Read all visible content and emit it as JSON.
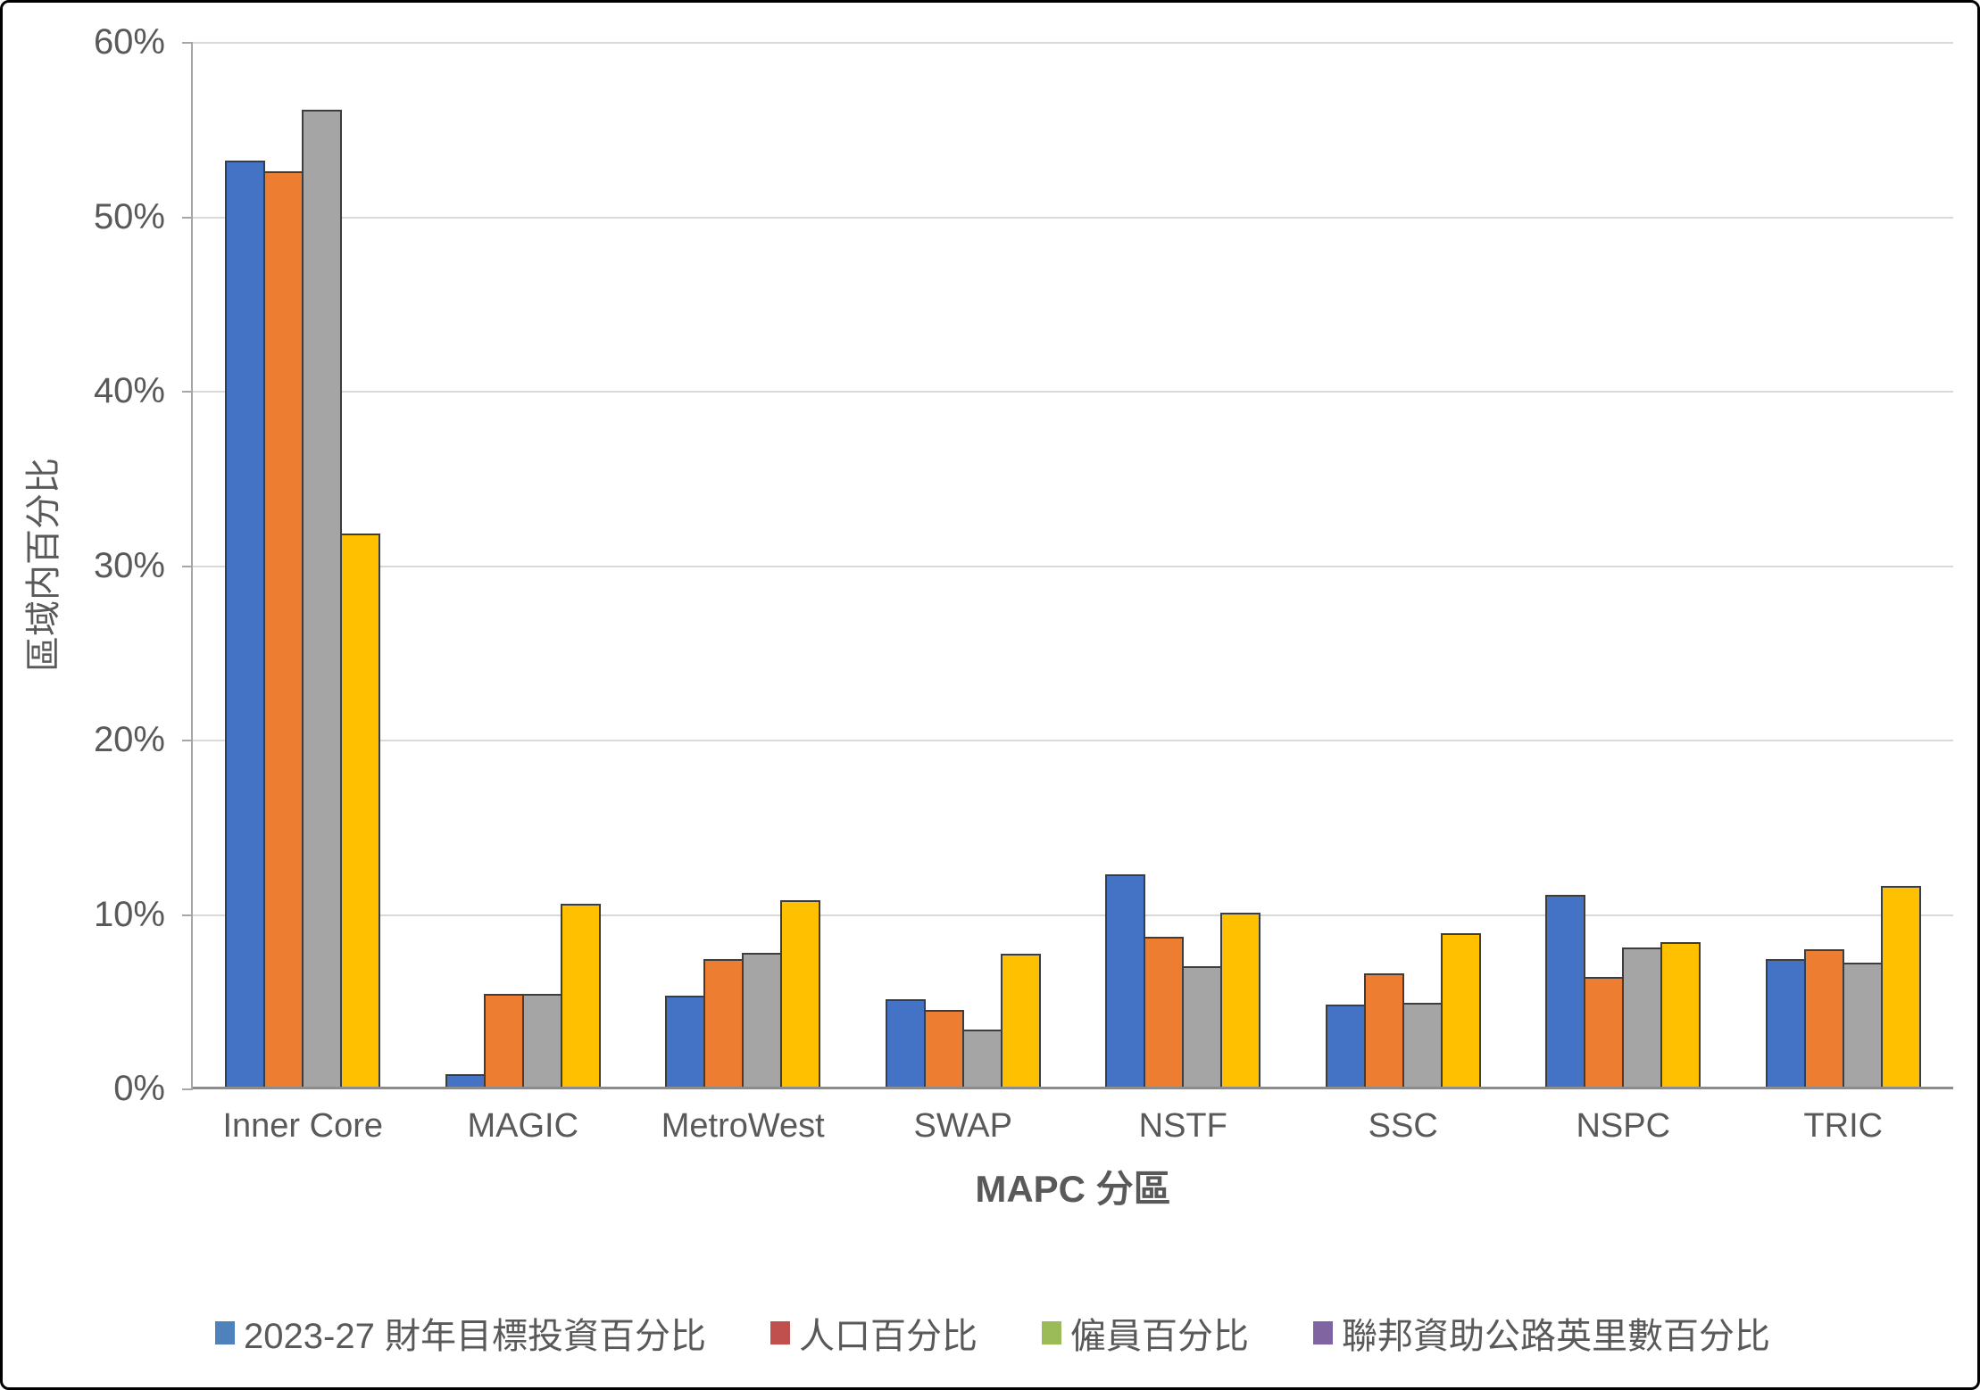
{
  "chart_data": {
    "type": "bar",
    "title": "",
    "xlabel": "MAPC 分區",
    "ylabel": "區域内百分比",
    "categories": [
      "Inner Core",
      "MAGIC",
      "MetroWest",
      "SWAP",
      "NSTF",
      "SSC",
      "NSPC",
      "TRIC"
    ],
    "series": [
      {
        "name": "2023-27 財年目標投資百分比",
        "legend_color": "#4F81BD",
        "bar_color": "#4472C4",
        "values": [
          53.2,
          0.8,
          5.3,
          5.1,
          12.3,
          4.8,
          11.1,
          7.4
        ]
      },
      {
        "name": "人口百分比",
        "legend_color": "#C0504D",
        "bar_color": "#ED7D31",
        "values": [
          52.6,
          5.4,
          7.4,
          4.5,
          8.7,
          6.6,
          6.4,
          8.0
        ]
      },
      {
        "name": "僱員百分比",
        "legend_color": "#9BBB59",
        "bar_color": "#A5A5A5",
        "values": [
          56.1,
          5.4,
          7.8,
          3.4,
          7.0,
          4.9,
          8.1,
          7.2
        ]
      },
      {
        "name": "聯邦資助公路英里數百分比",
        "legend_color": "#8064A2",
        "bar_color": "#FFC000",
        "values": [
          31.8,
          10.6,
          10.8,
          7.7,
          10.1,
          8.9,
          8.4,
          11.6
        ]
      }
    ],
    "ylim": [
      0,
      60
    ],
    "ytick_step": 10,
    "ytick_labels": [
      "0%",
      "10%",
      "20%",
      "30%",
      "40%",
      "50%",
      "60%"
    ],
    "grid": true,
    "legend_position": "bottom",
    "colors": {
      "gridline": "#D9D9D9",
      "axis_line": "#A6A6A6",
      "baseline": "#8C8C8C",
      "bar_outline": "#3D3D3D",
      "text": "#595959",
      "outer_border": "#000000",
      "background": "#FFFFFF"
    }
  }
}
